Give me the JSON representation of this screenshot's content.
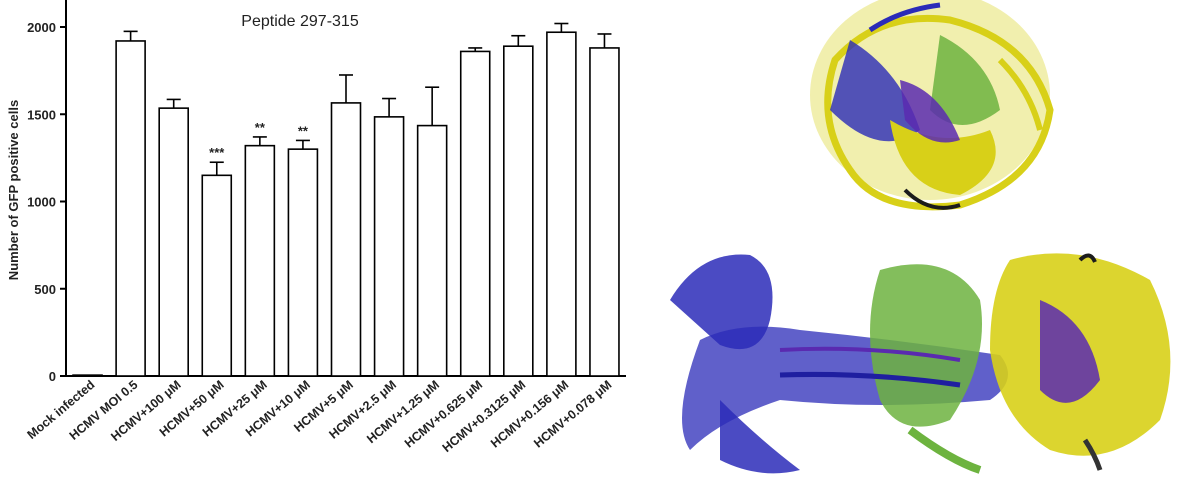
{
  "chart_data": {
    "type": "bar",
    "title": "Peptide 297-315",
    "ylabel": "Number of GFP positive cells",
    "xlabel": "",
    "ylim": [
      0,
      2000
    ],
    "yticks": [
      "0",
      "500",
      "1000",
      "1500",
      "2000"
    ],
    "categories": [
      "Mock infected",
      "HCMV MOI 0.5",
      "HCMV+100 μM",
      "HCMV+50 μM",
      "HCMV+25 μM",
      "HCMV+10 μM",
      "HCMV+5 μM",
      "HCMV+2.5 μM",
      "HCMV+1.25 μM",
      "HCMV+0.625 μM",
      "HCMV+0.3125 μM",
      "HCMV+0.156 μM",
      "HCMV+0.078 μM"
    ],
    "values": [
      5,
      1920,
      1535,
      1150,
      1320,
      1300,
      1565,
      1485,
      1435,
      1860,
      1890,
      1970,
      1880
    ],
    "errors": [
      0,
      55,
      50,
      75,
      50,
      50,
      160,
      105,
      220,
      20,
      60,
      50,
      80
    ],
    "significance": [
      "",
      "",
      "",
      "***",
      "**",
      "**",
      "",
      "",
      "",
      "",
      "",
      "",
      ""
    ],
    "grid": false,
    "bar_fill": "#ffffff",
    "bar_stroke": "#000000"
  },
  "images": [
    {
      "name": "protein-structure-top-view",
      "colors": [
        "#d8d018",
        "#2b2bb8",
        "#6db33f",
        "#5a2ab0"
      ]
    },
    {
      "name": "protein-structure-side-view",
      "colors": [
        "#2b2bb8",
        "#6db33f",
        "#d8d018",
        "#5a2ab0"
      ]
    }
  ]
}
